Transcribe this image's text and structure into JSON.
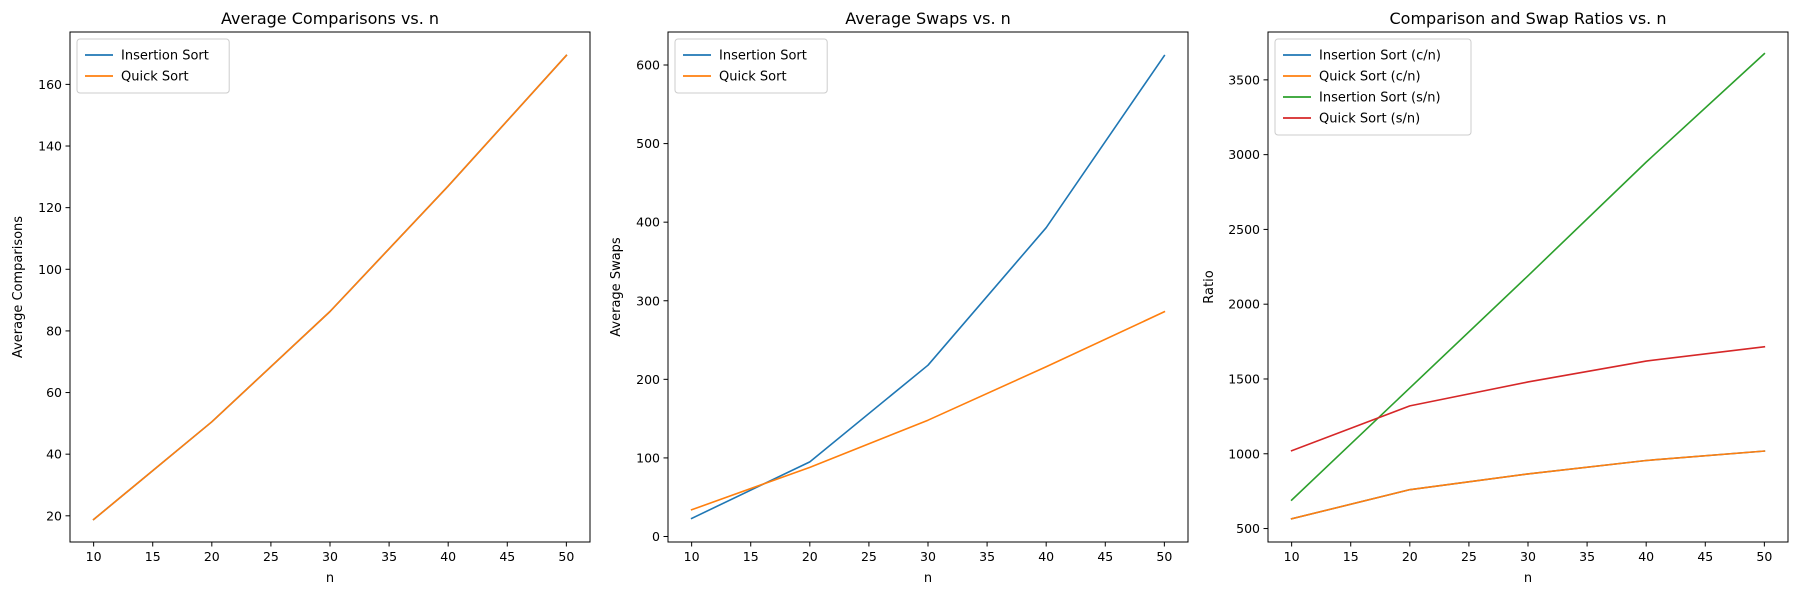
{
  "chart_data": [
    {
      "type": "line",
      "title": "Average Comparisons vs. n",
      "xlabel": "n",
      "ylabel": "Average Comparisons",
      "x": [
        10,
        20,
        30,
        40,
        50
      ],
      "xlim": [
        8,
        52
      ],
      "ylim": [
        11.5,
        177
      ],
      "xticks": [
        10,
        15,
        20,
        25,
        30,
        35,
        40,
        45,
        50
      ],
      "yticks": [
        20,
        40,
        60,
        80,
        100,
        120,
        140,
        160
      ],
      "grid": false,
      "legend": "top-left",
      "series": [
        {
          "name": "Insertion Sort",
          "color": "#1f77b4",
          "values": [
            18.8,
            50.5,
            86.3,
            127.0,
            169.4
          ]
        },
        {
          "name": "Quick Sort",
          "color": "#ff7f0e",
          "values": [
            18.8,
            50.5,
            86.3,
            127.0,
            169.4
          ]
        }
      ]
    },
    {
      "type": "line",
      "title": "Average Swaps vs. n",
      "xlabel": "n",
      "ylabel": "Average Swaps",
      "x": [
        10,
        20,
        30,
        40,
        50
      ],
      "xlim": [
        8,
        52
      ],
      "ylim": [
        -7,
        642
      ],
      "xticks": [
        10,
        15,
        20,
        25,
        30,
        35,
        40,
        45,
        50
      ],
      "yticks": [
        0,
        100,
        200,
        300,
        400,
        500,
        600
      ],
      "grid": false,
      "legend": "top-left",
      "series": [
        {
          "name": "Insertion Sort",
          "color": "#1f77b4",
          "values": [
            23,
            95,
            218,
            393,
            612
          ]
        },
        {
          "name": "Quick Sort",
          "color": "#ff7f0e",
          "values": [
            34,
            88,
            148,
            216,
            286
          ]
        }
      ]
    },
    {
      "type": "line",
      "title": "Comparison and Swap Ratios vs. n",
      "xlabel": "n",
      "ylabel": "Ratio",
      "x": [
        10,
        20,
        30,
        40,
        50
      ],
      "xlim": [
        8,
        52
      ],
      "ylim": [
        410,
        3820
      ],
      "xticks": [
        10,
        15,
        20,
        25,
        30,
        35,
        40,
        45,
        50
      ],
      "yticks": [
        500,
        1000,
        1500,
        2000,
        2500,
        3000,
        3500
      ],
      "grid": false,
      "legend": "top-left",
      "series": [
        {
          "name": "Insertion Sort (c/n)",
          "color": "#1f77b4",
          "values": [
            565,
            760,
            865,
            955,
            1018
          ]
        },
        {
          "name": "Quick Sort (c/n)",
          "color": "#ff7f0e",
          "values": [
            565,
            760,
            865,
            955,
            1018
          ]
        },
        {
          "name": "Insertion Sort (s/n)",
          "color": "#2ca02c",
          "values": [
            690,
            1440,
            2190,
            2950,
            3675
          ]
        },
        {
          "name": "Quick Sort (s/n)",
          "color": "#d62728",
          "values": [
            1020,
            1320,
            1480,
            1620,
            1715
          ]
        }
      ]
    }
  ]
}
